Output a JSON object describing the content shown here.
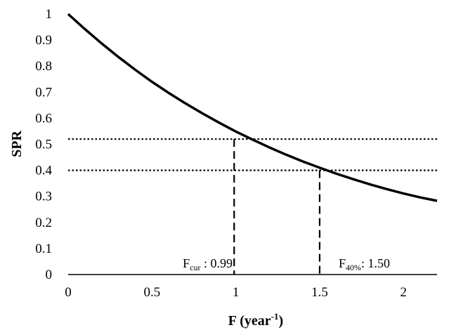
{
  "chart_data": {
    "type": "line",
    "xlabel_base": "F (year",
    "xlabel_sup": "-1",
    "xlabel_close": ")",
    "ylabel": "SPR",
    "xlim": [
      0,
      2.2
    ],
    "ylim": [
      0,
      1
    ],
    "x_ticks": [
      0,
      0.5,
      1,
      1.5,
      2
    ],
    "x_tick_labels": [
      "0",
      "0.5",
      "1",
      "1.5",
      "2"
    ],
    "y_ticks": [
      0,
      0.1,
      0.2,
      0.3,
      0.4,
      0.5,
      0.6,
      0.7,
      0.8,
      0.9,
      1
    ],
    "y_tick_labels": [
      "0",
      "0.1",
      "0.2",
      "0.3",
      "0.4",
      "0.5",
      "0.6",
      "0.7",
      "0.8",
      "0.9",
      "1"
    ],
    "grid": false,
    "curve": {
      "x": [
        0,
        0.1,
        0.2,
        0.3,
        0.4,
        0.5,
        0.6,
        0.7,
        0.8,
        0.9,
        1.0,
        1.1,
        1.2,
        1.3,
        1.4,
        1.5,
        1.6,
        1.7,
        1.8,
        1.9,
        2.0,
        2.1,
        2.2
      ],
      "y": [
        1.0,
        0.942,
        0.887,
        0.835,
        0.786,
        0.74,
        0.697,
        0.657,
        0.619,
        0.583,
        0.549,
        0.518,
        0.488,
        0.46,
        0.434,
        0.41,
        0.387,
        0.366,
        0.346,
        0.328,
        0.311,
        0.296,
        0.283
      ]
    },
    "reference_lines": [
      {
        "x": 0.99,
        "y": 0.52
      },
      {
        "x": 1.5,
        "y": 0.4
      }
    ],
    "annotations": [
      {
        "base": "F",
        "sub": "cur",
        "text": " : 0.99",
        "x": 0.99
      },
      {
        "base": "F",
        "sub": "40%",
        "text": ": 1.50",
        "x": 1.5
      }
    ]
  }
}
